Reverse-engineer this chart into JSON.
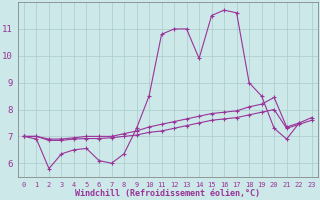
{
  "background_color": "#cce8e8",
  "grid_color": "#aacccc",
  "line_color": "#993399",
  "xlabel": "Windchill (Refroidissement éolien,°C)",
  "xlim": [
    -0.5,
    23.5
  ],
  "ylim": [
    5.5,
    12.0
  ],
  "yticks": [
    6,
    7,
    8,
    9,
    10,
    11
  ],
  "xticks": [
    0,
    1,
    2,
    3,
    4,
    5,
    6,
    7,
    8,
    9,
    10,
    11,
    12,
    13,
    14,
    15,
    16,
    17,
    18,
    19,
    20,
    21,
    22,
    23
  ],
  "series1_x": [
    0,
    1,
    2,
    3,
    4,
    5,
    6,
    7,
    8,
    9,
    10,
    11,
    12,
    13,
    14,
    15,
    16,
    17,
    18,
    19,
    20,
    21,
    22
  ],
  "series1_y": [
    7.0,
    6.9,
    5.8,
    6.35,
    6.5,
    6.55,
    6.1,
    6.0,
    6.35,
    7.3,
    8.5,
    10.8,
    11.0,
    11.0,
    9.9,
    11.5,
    11.7,
    11.6,
    9.0,
    8.5,
    7.3,
    6.9,
    7.5
  ],
  "series2_x": [
    0,
    1,
    2,
    3,
    4,
    5,
    6,
    7,
    8,
    9,
    10,
    11,
    12,
    13,
    14,
    15,
    16,
    17,
    18,
    19,
    20,
    21,
    22,
    23
  ],
  "series2_y": [
    7.0,
    7.0,
    6.9,
    6.9,
    6.95,
    7.0,
    7.0,
    7.0,
    7.1,
    7.2,
    7.35,
    7.45,
    7.55,
    7.65,
    7.75,
    7.85,
    7.9,
    7.95,
    8.1,
    8.2,
    8.45,
    7.35,
    7.5,
    7.7
  ],
  "series3_x": [
    0,
    1,
    2,
    3,
    4,
    5,
    6,
    7,
    8,
    9,
    10,
    11,
    12,
    13,
    14,
    15,
    16,
    17,
    18,
    19,
    20,
    21,
    22,
    23
  ],
  "series3_y": [
    7.0,
    7.0,
    6.85,
    6.85,
    6.9,
    6.92,
    6.92,
    6.95,
    7.0,
    7.05,
    7.15,
    7.2,
    7.3,
    7.4,
    7.5,
    7.6,
    7.65,
    7.7,
    7.8,
    7.9,
    8.0,
    7.3,
    7.45,
    7.6
  ],
  "figsize": [
    3.2,
    2.0
  ],
  "dpi": 100
}
